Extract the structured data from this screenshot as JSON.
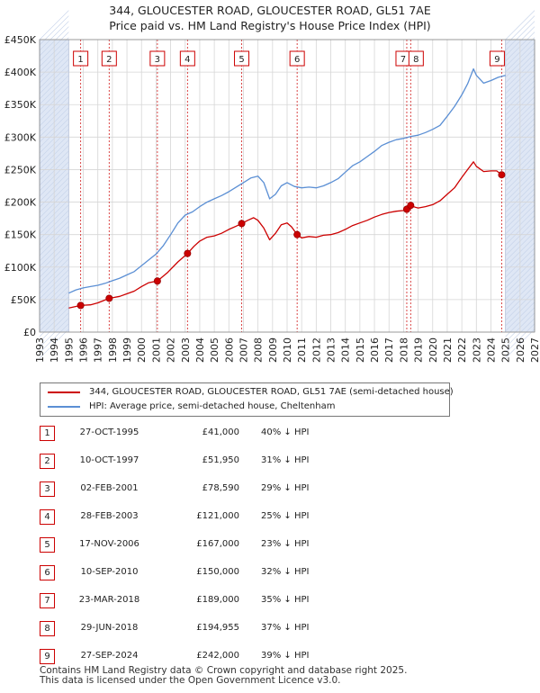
{
  "title_line1": "344, GLOUCESTER ROAD, GLOUCESTER ROAD, GL51 7AE",
  "title_line2": "Price paid vs. HM Land Registry's House Price Index (HPI)",
  "colors": {
    "property": "#cc0000",
    "hpi": "#5b8fd4",
    "shade": "#dfe7f5",
    "grid": "#d6d6d6"
  },
  "chart_data": {
    "type": "line",
    "title": "Price paid vs. HM Land Registry's House Price Index (HPI)",
    "xlim": [
      1993,
      2027
    ],
    "ylim": [
      0,
      450000
    ],
    "y_ticks": [
      {
        "value": 0,
        "label": "£0"
      },
      {
        "value": 50000,
        "label": "£50K"
      },
      {
        "value": 100000,
        "label": "£100K"
      },
      {
        "value": 150000,
        "label": "£150K"
      },
      {
        "value": 200000,
        "label": "£200K"
      },
      {
        "value": 250000,
        "label": "£250K"
      },
      {
        "value": 300000,
        "label": "£300K"
      },
      {
        "value": 350000,
        "label": "£350K"
      },
      {
        "value": 400000,
        "label": "£400K"
      },
      {
        "value": 450000,
        "label": "£450K"
      }
    ],
    "x_ticks": [
      1993,
      1994,
      1995,
      1996,
      1997,
      1998,
      1999,
      2000,
      2001,
      2002,
      2003,
      2004,
      2005,
      2006,
      2007,
      2008,
      2009,
      2010,
      2011,
      2012,
      2013,
      2014,
      2015,
      2016,
      2017,
      2018,
      2019,
      2020,
      2021,
      2022,
      2023,
      2024,
      2025,
      2026,
      2027
    ],
    "shaded_ranges": [
      [
        1993,
        1995.0
      ],
      [
        2025.0,
        2027
      ]
    ],
    "series": [
      {
        "name": "344, GLOUCESTER ROAD, GLOUCESTER ROAD, GL51 7AE (semi-detached house)",
        "color": "#cc0000",
        "x": [
          1995.0,
          1995.82,
          1996.5,
          1997.0,
          1997.78,
          1998.5,
          1999.0,
          1999.5,
          2000.0,
          2000.5,
          2001.09,
          2001.8,
          2002.5,
          2003.16,
          2003.6,
          2004.0,
          2004.5,
          2005.0,
          2005.5,
          2006.0,
          2006.5,
          2006.88,
          2007.3,
          2007.7,
          2008.0,
          2008.4,
          2008.8,
          2009.2,
          2009.6,
          2010.0,
          2010.3,
          2010.69,
          2011.0,
          2011.5,
          2012.0,
          2012.5,
          2013.0,
          2013.5,
          2014.0,
          2014.5,
          2015.0,
          2015.5,
          2016.0,
          2016.5,
          2017.0,
          2017.5,
          2018.0,
          2018.22,
          2018.49,
          2018.8,
          2019.0,
          2019.5,
          2020.0,
          2020.5,
          2021.0,
          2021.5,
          2022.0,
          2022.4,
          2022.8,
          2023.0,
          2023.5,
          2024.0,
          2024.4,
          2024.74
        ],
        "y": [
          37000,
          41000,
          42000,
          45000,
          51950,
          55000,
          59000,
          63000,
          70000,
          76000,
          78590,
          92000,
          108000,
          121000,
          132000,
          140000,
          146000,
          148000,
          152000,
          158000,
          163000,
          167000,
          172000,
          176000,
          172000,
          160000,
          142000,
          152000,
          165000,
          168000,
          162000,
          150000,
          145000,
          147000,
          146000,
          149000,
          150000,
          153000,
          158000,
          164000,
          168000,
          172000,
          177000,
          181000,
          184000,
          186000,
          187000,
          189000,
          194955,
          192000,
          191000,
          193000,
          196000,
          202000,
          212000,
          222000,
          238000,
          250000,
          262000,
          255000,
          247000,
          248000,
          248000,
          242000
        ]
      },
      {
        "name": "HPI: Average price, semi-detached house, Cheltenham",
        "color": "#5b8fd4",
        "x": [
          1995.0,
          1995.5,
          1996.0,
          1996.5,
          1997.0,
          1997.5,
          1998.0,
          1998.5,
          1999.0,
          1999.5,
          2000.0,
          2000.5,
          2001.0,
          2001.5,
          2002.0,
          2002.5,
          2003.0,
          2003.5,
          2004.0,
          2004.5,
          2005.0,
          2005.5,
          2006.0,
          2006.5,
          2007.0,
          2007.5,
          2008.0,
          2008.4,
          2008.8,
          2009.2,
          2009.6,
          2010.0,
          2010.5,
          2011.0,
          2011.5,
          2012.0,
          2012.5,
          2013.0,
          2013.5,
          2014.0,
          2014.5,
          2015.0,
          2015.5,
          2016.0,
          2016.5,
          2017.0,
          2017.5,
          2018.0,
          2018.5,
          2019.0,
          2019.5,
          2020.0,
          2020.5,
          2021.0,
          2021.5,
          2022.0,
          2022.4,
          2022.8,
          2023.0,
          2023.5,
          2024.0,
          2024.5,
          2025.0
        ],
        "y": [
          60000,
          65000,
          68000,
          70000,
          72000,
          75000,
          79000,
          83000,
          88000,
          93000,
          102000,
          111000,
          120000,
          133000,
          150000,
          168000,
          180000,
          185000,
          193000,
          200000,
          205000,
          210000,
          216000,
          223000,
          230000,
          237000,
          240000,
          230000,
          205000,
          212000,
          225000,
          230000,
          224000,
          222000,
          223000,
          222000,
          225000,
          230000,
          236000,
          246000,
          256000,
          262000,
          270000,
          278000,
          287000,
          292000,
          296000,
          298000,
          301000,
          303000,
          307000,
          312000,
          318000,
          332000,
          347000,
          365000,
          382000,
          405000,
          395000,
          383000,
          387000,
          392000,
          395000
        ]
      }
    ],
    "markers": [
      {
        "n": "1",
        "x": 1995.82,
        "y": 41000
      },
      {
        "n": "2",
        "x": 1997.78,
        "y": 51950
      },
      {
        "n": "3",
        "x": 2001.09,
        "y": 78590
      },
      {
        "n": "4",
        "x": 2003.16,
        "y": 121000
      },
      {
        "n": "5",
        "x": 2006.88,
        "y": 167000
      },
      {
        "n": "6",
        "x": 2010.69,
        "y": 150000
      },
      {
        "n": "7",
        "x": 2018.22,
        "y": 189000
      },
      {
        "n": "8",
        "x": 2018.49,
        "y": 194955
      },
      {
        "n": "9",
        "x": 2024.74,
        "y": 242000
      }
    ]
  },
  "legend": {
    "property": "344, GLOUCESTER ROAD, GLOUCESTER ROAD, GL51 7AE (semi-detached house)",
    "hpi": "HPI: Average price, semi-detached house, Cheltenham"
  },
  "sales": [
    {
      "n": "1",
      "date": "27-OCT-1995",
      "price": "£41,000",
      "hpi": "40% ↓ HPI"
    },
    {
      "n": "2",
      "date": "10-OCT-1997",
      "price": "£51,950",
      "hpi": "31% ↓ HPI"
    },
    {
      "n": "3",
      "date": "02-FEB-2001",
      "price": "£78,590",
      "hpi": "29% ↓ HPI"
    },
    {
      "n": "4",
      "date": "28-FEB-2003",
      "price": "£121,000",
      "hpi": "25% ↓ HPI"
    },
    {
      "n": "5",
      "date": "17-NOV-2006",
      "price": "£167,000",
      "hpi": "23% ↓ HPI"
    },
    {
      "n": "6",
      "date": "10-SEP-2010",
      "price": "£150,000",
      "hpi": "32% ↓ HPI"
    },
    {
      "n": "7",
      "date": "23-MAR-2018",
      "price": "£189,000",
      "hpi": "35% ↓ HPI"
    },
    {
      "n": "8",
      "date": "29-JUN-2018",
      "price": "£194,955",
      "hpi": "37% ↓ HPI"
    },
    {
      "n": "9",
      "date": "27-SEP-2024",
      "price": "£242,000",
      "hpi": "39% ↓ HPI"
    }
  ],
  "footer_line1": "Contains HM Land Registry data © Crown copyright and database right 2025.",
  "footer_line2": "This data is licensed under the Open Government Licence v3.0."
}
